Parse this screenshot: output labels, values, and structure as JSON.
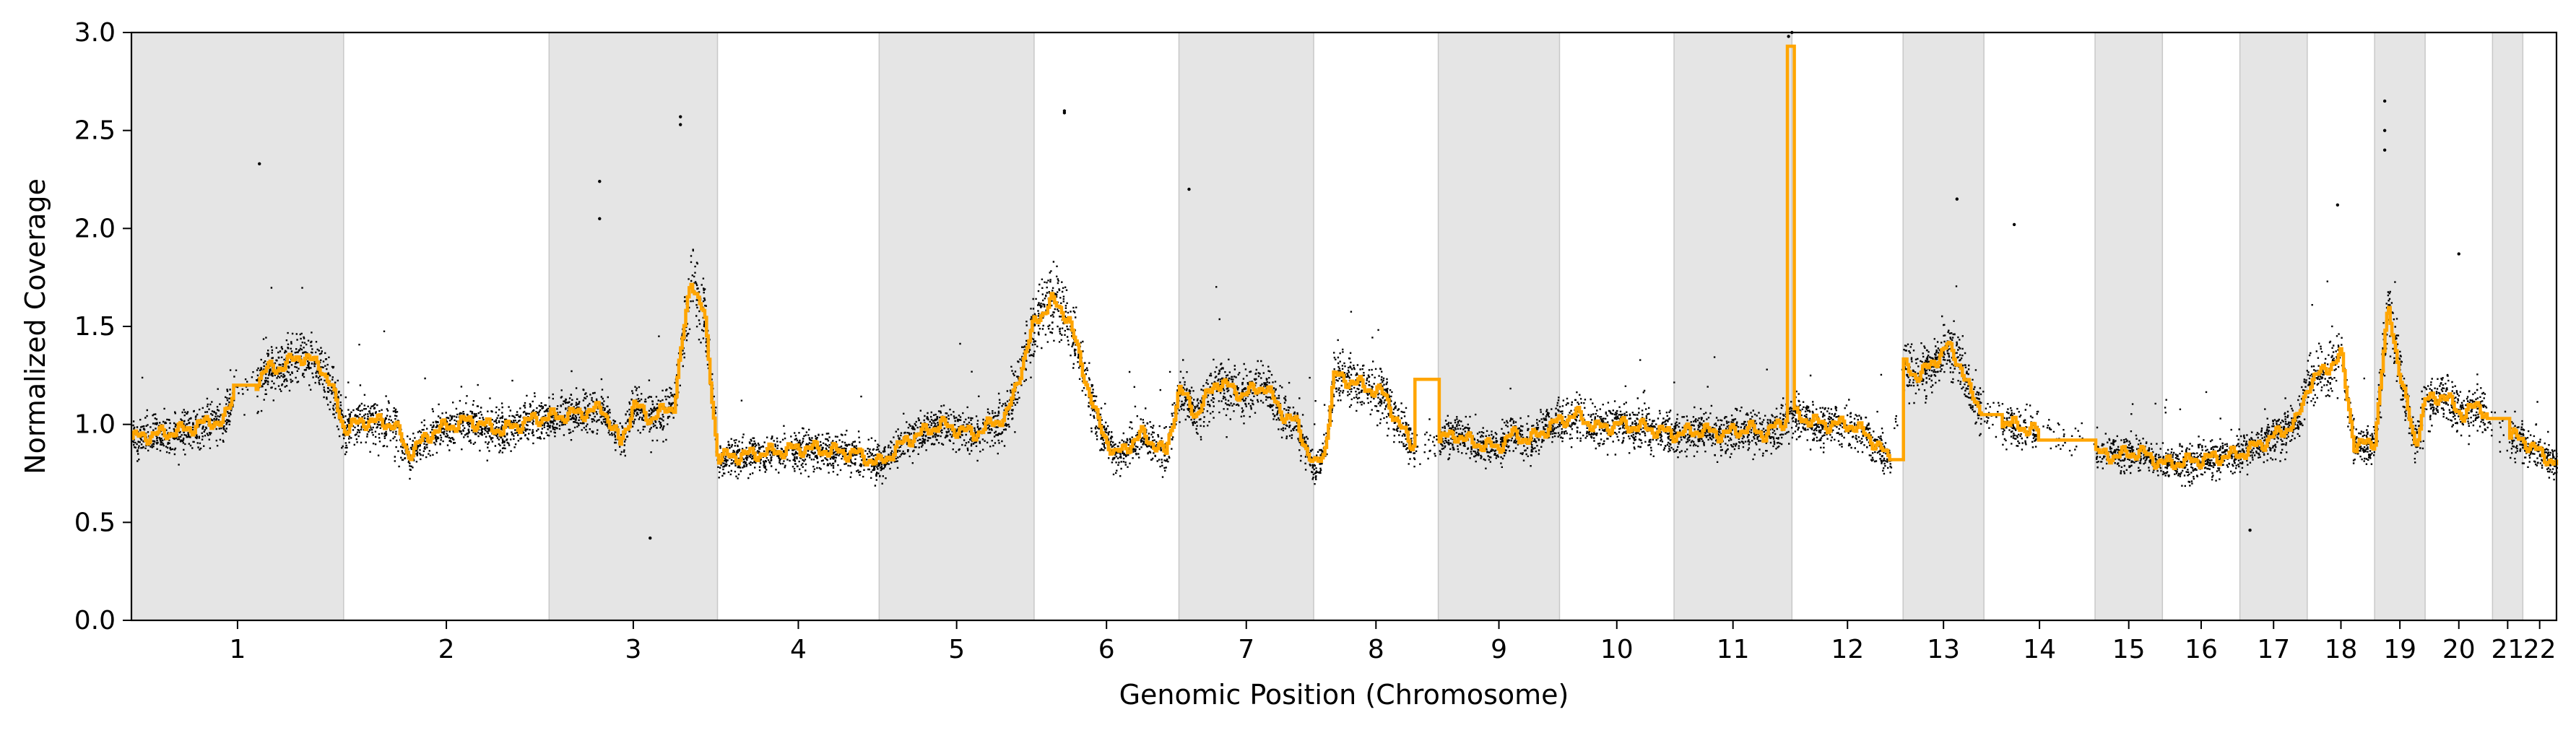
{
  "chart_data": {
    "type": "scatter",
    "xlabel": "Genomic Position (Chromosome)",
    "ylabel": "Normalized Coverage",
    "ylim": [
      0.0,
      3.0
    ],
    "yticks": [
      "0.0",
      "0.5",
      "1.0",
      "1.5",
      "2.0",
      "2.5",
      "3.0"
    ],
    "grid": false,
    "legend": "none",
    "colors": {
      "points": "#000000",
      "segments": "#ffa500",
      "band": "#e5e5e5",
      "band_edge": "#c8c8c8"
    },
    "chromosomes": [
      {
        "label": "1",
        "start": 0.0,
        "end": 6.3,
        "shaded": true
      },
      {
        "label": "2",
        "start": 6.3,
        "end": 12.4,
        "shaded": false
      },
      {
        "label": "3",
        "start": 12.4,
        "end": 17.4,
        "shaded": true
      },
      {
        "label": "4",
        "start": 17.4,
        "end": 22.2,
        "shaded": false
      },
      {
        "label": "5",
        "start": 22.2,
        "end": 26.8,
        "shaded": true
      },
      {
        "label": "6",
        "start": 26.8,
        "end": 31.1,
        "shaded": false
      },
      {
        "label": "7",
        "start": 31.1,
        "end": 35.1,
        "shaded": true
      },
      {
        "label": "8",
        "start": 35.1,
        "end": 38.8,
        "shaded": false
      },
      {
        "label": "9",
        "start": 38.8,
        "end": 42.4,
        "shaded": true
      },
      {
        "label": "10",
        "start": 42.4,
        "end": 45.8,
        "shaded": false
      },
      {
        "label": "11",
        "start": 45.8,
        "end": 49.3,
        "shaded": true
      },
      {
        "label": "12",
        "start": 49.3,
        "end": 52.6,
        "shaded": false
      },
      {
        "label": "13",
        "start": 52.6,
        "end": 55.0,
        "shaded": true
      },
      {
        "label": "14",
        "start": 55.0,
        "end": 58.3,
        "shaded": false
      },
      {
        "label": "15",
        "start": 58.3,
        "end": 60.3,
        "shaded": true
      },
      {
        "label": "16",
        "start": 60.3,
        "end": 62.6,
        "shaded": false
      },
      {
        "label": "17",
        "start": 62.6,
        "end": 64.6,
        "shaded": true
      },
      {
        "label": "18",
        "start": 64.6,
        "end": 66.6,
        "shaded": false
      },
      {
        "label": "19",
        "start": 66.6,
        "end": 68.1,
        "shaded": true
      },
      {
        "label": "20",
        "start": 68.1,
        "end": 70.1,
        "shaded": false
      },
      {
        "label": "21",
        "start": 70.1,
        "end": 71.0,
        "shaded": true
      },
      {
        "label": "22",
        "start": 71.0,
        "end": 72.0,
        "shaded": false
      }
    ],
    "segment_profile": [
      [
        0.0,
        0.93
      ],
      [
        1.5,
        0.97
      ],
      [
        2.4,
        1.02
      ],
      [
        2.7,
        1.0
      ],
      [
        3.1,
        1.2
      ],
      [
        3.7,
        1.22
      ],
      [
        4.0,
        1.28
      ],
      [
        4.5,
        1.3
      ],
      [
        5.0,
        1.35
      ],
      [
        5.6,
        1.3
      ],
      [
        5.9,
        1.2
      ],
      [
        6.3,
        0.98
      ],
      [
        7.0,
        1.02
      ],
      [
        7.8,
        1.0
      ],
      [
        8.2,
        0.85
      ],
      [
        9.0,
        0.97
      ],
      [
        10.0,
        1.02
      ],
      [
        11.0,
        0.97
      ],
      [
        12.0,
        1.03
      ],
      [
        13.0,
        1.05
      ],
      [
        14.0,
        1.08
      ],
      [
        14.5,
        0.9
      ],
      [
        14.9,
        1.1
      ],
      [
        15.4,
        1.03
      ],
      [
        16.1,
        1.1
      ],
      [
        16.6,
        1.75
      ],
      [
        17.0,
        1.55
      ],
      [
        17.4,
        0.83
      ],
      [
        18.5,
        0.85
      ],
      [
        20.0,
        0.88
      ],
      [
        21.5,
        0.85
      ],
      [
        22.2,
        0.8
      ],
      [
        23.0,
        0.92
      ],
      [
        24.0,
        1.0
      ],
      [
        25.0,
        0.95
      ],
      [
        26.0,
        1.05
      ],
      [
        26.8,
        1.52
      ],
      [
        27.3,
        1.63
      ],
      [
        27.8,
        1.55
      ],
      [
        28.2,
        1.3
      ],
      [
        28.7,
        1.0
      ],
      [
        29.2,
        0.84
      ],
      [
        30.0,
        0.95
      ],
      [
        30.7,
        0.85
      ],
      [
        31.1,
        1.18
      ],
      [
        31.6,
        1.05
      ],
      [
        32.2,
        1.22
      ],
      [
        33.0,
        1.15
      ],
      [
        33.6,
        1.2
      ],
      [
        34.2,
        1.05
      ],
      [
        34.6,
        1.0
      ],
      [
        35.1,
        0.78
      ],
      [
        35.4,
        0.85
      ],
      [
        35.7,
        1.25
      ],
      [
        36.5,
        1.2
      ],
      [
        37.2,
        1.15
      ],
      [
        37.6,
        1.0
      ],
      [
        38.0,
        0.9
      ],
      [
        38.8,
        0.92
      ],
      [
        39.3,
        0.95
      ],
      [
        39.6,
        0.92
      ],
      [
        40.0,
        0.9
      ],
      [
        40.5,
        0.88
      ],
      [
        41.0,
        0.95
      ],
      [
        41.5,
        0.92
      ],
      [
        42.4,
        1.02
      ],
      [
        42.9,
        1.05
      ],
      [
        43.5,
        0.98
      ],
      [
        44.2,
        1.0
      ],
      [
        45.0,
        0.98
      ],
      [
        45.8,
        0.95
      ],
      [
        46.6,
        0.97
      ],
      [
        47.2,
        0.95
      ],
      [
        48.0,
        0.98
      ],
      [
        48.5,
        0.95
      ],
      [
        49.3,
        1.05
      ],
      [
        50.2,
        1.0
      ],
      [
        51.0,
        1.0
      ],
      [
        51.5,
        0.95
      ],
      [
        52.2,
        0.82
      ],
      [
        52.6,
        1.3
      ],
      [
        53.0,
        1.25
      ],
      [
        53.3,
        1.28
      ],
      [
        53.9,
        1.4
      ],
      [
        54.3,
        1.3
      ],
      [
        54.6,
        1.15
      ],
      [
        55.0,
        1.05
      ],
      [
        55.8,
        1.0
      ],
      [
        56.5,
        0.97
      ],
      [
        57.2,
        0.95
      ],
      [
        57.8,
        0.93
      ],
      [
        58.3,
        0.85
      ],
      [
        58.9,
        0.84
      ],
      [
        59.6,
        0.86
      ],
      [
        60.3,
        0.8
      ],
      [
        61.0,
        0.81
      ],
      [
        61.8,
        0.83
      ],
      [
        62.6,
        0.85
      ],
      [
        63.2,
        0.9
      ],
      [
        63.8,
        0.96
      ],
      [
        64.3,
        1.02
      ],
      [
        64.6,
        1.2
      ],
      [
        65.1,
        1.28
      ],
      [
        65.6,
        1.35
      ],
      [
        66.0,
        0.88
      ],
      [
        66.6,
        0.92
      ],
      [
        67.0,
        1.6
      ],
      [
        67.4,
        1.2
      ],
      [
        67.8,
        0.9
      ],
      [
        68.1,
        1.12
      ],
      [
        68.6,
        1.15
      ],
      [
        69.2,
        1.05
      ],
      [
        69.7,
        1.1
      ],
      [
        70.1,
        1.0
      ],
      [
        70.5,
        0.95
      ],
      [
        71.0,
        0.92
      ],
      [
        71.5,
        0.85
      ],
      [
        72.0,
        0.8
      ]
    ],
    "segment_overrides": [
      {
        "start": 3.0,
        "end": 3.7,
        "y": 1.2
      },
      {
        "start": 38.1,
        "end": 38.8,
        "y": 1.23
      },
      {
        "start": 49.15,
        "end": 49.35,
        "y": 2.93
      },
      {
        "start": 52.2,
        "end": 52.6,
        "y": 0.82
      },
      {
        "start": 54.9,
        "end": 55.5,
        "y": 1.05
      },
      {
        "start": 56.6,
        "end": 58.3,
        "y": 0.92
      },
      {
        "start": 69.9,
        "end": 70.6,
        "y": 1.03
      }
    ],
    "notable_points": [
      {
        "x": 3.8,
        "y": 2.33
      },
      {
        "x": 13.9,
        "y": 2.24
      },
      {
        "x": 13.9,
        "y": 2.05
      },
      {
        "x": 16.3,
        "y": 2.57
      },
      {
        "x": 16.3,
        "y": 2.53
      },
      {
        "x": 15.4,
        "y": 0.42
      },
      {
        "x": 27.7,
        "y": 2.6
      },
      {
        "x": 27.7,
        "y": 2.59
      },
      {
        "x": 31.4,
        "y": 2.2
      },
      {
        "x": 49.3,
        "y": 3.0
      },
      {
        "x": 49.2,
        "y": 2.98
      },
      {
        "x": 54.2,
        "y": 2.15
      },
      {
        "x": 55.9,
        "y": 2.02
      },
      {
        "x": 65.5,
        "y": 2.12
      },
      {
        "x": 66.9,
        "y": 2.65
      },
      {
        "x": 66.9,
        "y": 2.5
      },
      {
        "x": 66.9,
        "y": 2.4
      },
      {
        "x": 69.1,
        "y": 1.87
      },
      {
        "x": 62.9,
        "y": 0.46
      }
    ]
  }
}
